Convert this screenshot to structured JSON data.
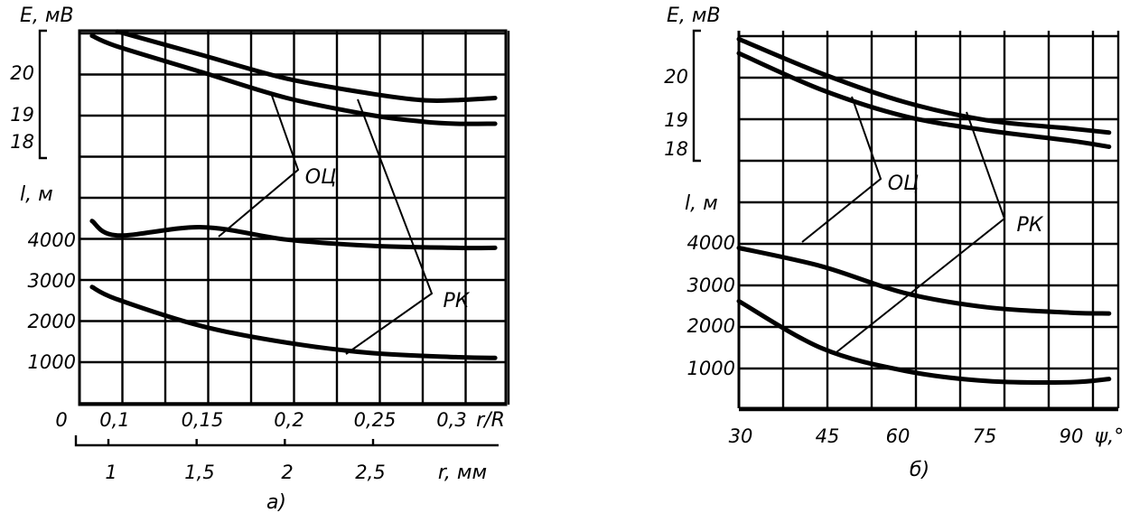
{
  "chart_data": [
    {
      "id": "a",
      "type": "line",
      "panel_label": "а)",
      "x_top": {
        "label": "r/R",
        "ticks": [
          "0",
          "0,1",
          "0,15",
          "0,2",
          "0,25",
          "0,3"
        ],
        "values": [
          0.1,
          0.15,
          0.2,
          0.25,
          0.3
        ],
        "range": [
          0.08,
          0.325
        ]
      },
      "x_bottom": {
        "label": "r, мм",
        "ticks": [
          "1",
          "1,5",
          "2",
          "2,5"
        ],
        "values": [
          1,
          1.5,
          2,
          2.5
        ]
      },
      "y_E": {
        "label": "E, мВ",
        "ticks": [
          "20",
          "19",
          "18"
        ],
        "values": [
          20,
          19,
          18
        ],
        "range": [
          17.8,
          21.1
        ]
      },
      "y_l": {
        "label": "l, м",
        "ticks": [
          "4000",
          "3000",
          "2000",
          "1000"
        ],
        "values": [
          4000,
          3000,
          2000,
          1000
        ],
        "range": [
          0,
          4950
        ]
      },
      "series": [
        {
          "axis": "E",
          "x": [
            0.1,
            0.15,
            0.2,
            0.25,
            0.28,
            0.3,
            0.323
          ],
          "y": [
            20.95,
            20.4,
            19.85,
            19.5,
            19.35,
            19.35,
            19.4
          ]
        },
        {
          "axis": "E",
          "x": [
            0.085,
            0.1,
            0.15,
            0.2,
            0.25,
            0.28,
            0.3,
            0.323
          ],
          "y": [
            20.85,
            20.6,
            20.0,
            19.4,
            19.0,
            18.85,
            18.8,
            18.8
          ]
        },
        {
          "axis": "l",
          "x": [
            0.085,
            0.1,
            0.15,
            0.2,
            0.25,
            0.3,
            0.323
          ],
          "y": [
            4400,
            4050,
            4250,
            3950,
            3800,
            3750,
            3750
          ]
        },
        {
          "axis": "l",
          "x": [
            0.085,
            0.1,
            0.15,
            0.2,
            0.25,
            0.3,
            0.323
          ],
          "y": [
            2800,
            2500,
            1850,
            1450,
            1200,
            1100,
            1080
          ]
        }
      ],
      "annotations": [
        "ОЦ",
        "РК"
      ]
    },
    {
      "id": "b",
      "type": "line",
      "panel_label": "б)",
      "x_bottom": {
        "label": "ψ,°",
        "ticks": [
          "30",
          "45",
          "60",
          "75",
          "90"
        ],
        "values": [
          30,
          45,
          60,
          75,
          90
        ],
        "range": [
          30,
          97
        ]
      },
      "y_E": {
        "label": "E, мВ",
        "ticks": [
          "20",
          "19",
          "18"
        ],
        "values": [
          20,
          19,
          18
        ],
        "range": [
          17.8,
          21.1
        ]
      },
      "y_l": {
        "label": "l, м",
        "ticks": [
          "4000",
          "3000",
          "2000",
          "1000"
        ],
        "values": [
          4000,
          3000,
          2000,
          1000
        ],
        "range": [
          0,
          4950
        ]
      },
      "series": [
        {
          "axis": "E",
          "x": [
            30,
            45,
            60,
            75,
            90,
            97
          ],
          "y": [
            20.95,
            20.1,
            19.4,
            18.95,
            18.75,
            18.65
          ]
        },
        {
          "axis": "E",
          "x": [
            30,
            45,
            60,
            75,
            90,
            97
          ],
          "y": [
            20.6,
            19.7,
            19.05,
            18.7,
            18.45,
            18.3
          ]
        },
        {
          "axis": "l",
          "x": [
            30,
            45,
            60,
            75,
            90,
            97
          ],
          "y": [
            3900,
            3450,
            2800,
            2450,
            2320,
            2300
          ]
        },
        {
          "axis": "l",
          "x": [
            30,
            45,
            60,
            75,
            90,
            97
          ],
          "y": [
            2600,
            1450,
            900,
            650,
            620,
            700
          ]
        }
      ],
      "annotations": [
        "ОЦ",
        "РК"
      ]
    }
  ]
}
